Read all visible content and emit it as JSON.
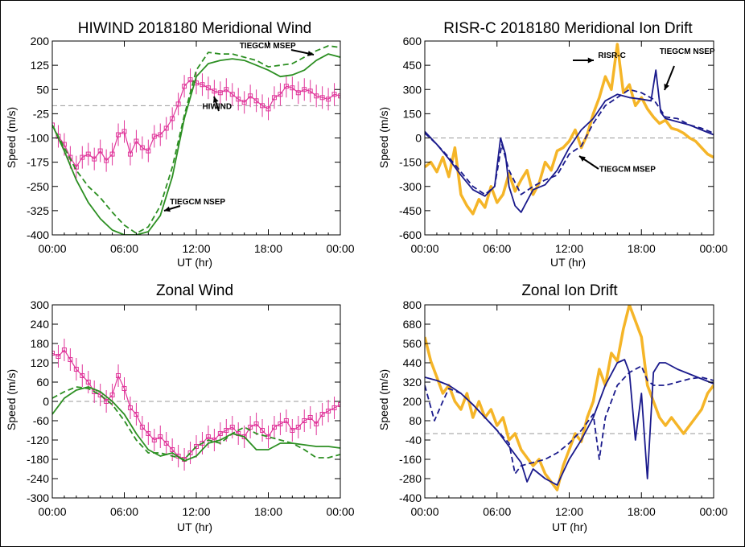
{
  "colors": {
    "hiwind": "#e0359a",
    "tiegcm_model": "#2c8f22",
    "risr": "#f5b528",
    "tiegcm_risr": "#1a1a8c",
    "zero_line": "#999999"
  },
  "chart_data": [
    {
      "type": "line",
      "title": "HIWIND  2018180 Meridional Wind",
      "xlabel": "UT (hr)",
      "ylabel": "Speed (m/s)",
      "xlim": [
        0,
        24
      ],
      "ylim": [
        -400,
        200
      ],
      "xticks": [
        0,
        6,
        12,
        18,
        24
      ],
      "xtick_labels": [
        "00:00",
        "06:00",
        "12:00",
        "18:00",
        "00:00"
      ],
      "yticks": [
        -400,
        -325,
        -250,
        -175,
        -100,
        -25,
        50,
        125,
        200
      ],
      "zero_line": true,
      "annotations": [
        {
          "text": "TIEGCM MSEP",
          "x": 15.6,
          "y": 178
        },
        {
          "text": "HIWIND",
          "x": 12.5,
          "y": -10
        },
        {
          "text": "TIEGCM NSEP",
          "x": 9.8,
          "y": -305
        }
      ],
      "series": [
        {
          "name": "HIWIND",
          "style": "markers-errorbars",
          "color_key": "hiwind",
          "x": [
            0.0,
            0.5,
            1.0,
            1.5,
            2.0,
            2.5,
            3.0,
            3.5,
            4.0,
            4.5,
            5.0,
            5.5,
            6.0,
            6.5,
            7.0,
            7.5,
            8.0,
            8.5,
            9.0,
            9.5,
            10.0,
            10.5,
            11.0,
            11.5,
            12.0,
            12.5,
            13.0,
            13.5,
            14.0,
            14.5,
            15.0,
            15.5,
            16.0,
            16.5,
            17.0,
            17.5,
            18.0,
            18.5,
            19.0,
            19.5,
            20.0,
            20.5,
            21.0,
            21.5,
            22.0,
            22.5,
            23.0,
            23.5,
            24.0
          ],
          "y": [
            -60,
            -95,
            -120,
            -160,
            -190,
            -160,
            -150,
            -165,
            -140,
            -170,
            -150,
            -90,
            -80,
            -150,
            -110,
            -130,
            -140,
            -95,
            -90,
            -70,
            -40,
            5,
            60,
            80,
            70,
            65,
            55,
            45,
            40,
            50,
            35,
            20,
            10,
            30,
            15,
            0,
            -10,
            25,
            35,
            60,
            55,
            40,
            50,
            45,
            30,
            25,
            20,
            35,
            30
          ]
        },
        {
          "name": "TIEGCM NSEP",
          "style": "solid",
          "color_key": "tiegcm_model",
          "x": [
            0,
            1,
            2,
            3,
            4,
            5,
            6,
            7,
            8,
            9,
            10,
            11,
            12,
            13,
            14,
            15,
            16,
            17,
            18,
            19,
            20,
            21,
            22,
            23,
            24
          ],
          "y": [
            -60,
            -140,
            -230,
            -300,
            -350,
            -385,
            -400,
            -400,
            -390,
            -340,
            -220,
            -40,
            90,
            130,
            140,
            145,
            140,
            125,
            110,
            90,
            95,
            110,
            140,
            160,
            150
          ]
        },
        {
          "name": "TIEGCM MSEP",
          "style": "dashed",
          "color_key": "tiegcm_model",
          "x": [
            0,
            1,
            2,
            3,
            4,
            5,
            6,
            7,
            8,
            9,
            10,
            11,
            12,
            13,
            14,
            15,
            16,
            17,
            18,
            19,
            20,
            21,
            22,
            23,
            24
          ],
          "y": [
            -60,
            -130,
            -200,
            -250,
            -285,
            -330,
            -370,
            -395,
            -375,
            -310,
            -190,
            -30,
            110,
            165,
            160,
            160,
            150,
            140,
            120,
            125,
            130,
            150,
            170,
            185,
            180
          ]
        }
      ]
    },
    {
      "type": "line",
      "title": "RISR-C  2018180 Meridional Ion Drift",
      "xlabel": "UT (hr)",
      "ylabel": "Speed (m/s)",
      "xlim": [
        0,
        24
      ],
      "ylim": [
        -600,
        600
      ],
      "xticks": [
        0,
        6,
        12,
        18,
        24
      ],
      "xtick_labels": [
        "00:00",
        "06:00",
        "12:00",
        "18:00",
        "00:00"
      ],
      "yticks": [
        -600,
        -450,
        -300,
        -150,
        0,
        150,
        300,
        450,
        600
      ],
      "zero_line": true,
      "annotations": [
        {
          "text": "RISR-C",
          "x": 14.4,
          "y": 495
        },
        {
          "text": "TIEGCM NSEP",
          "x": 19.5,
          "y": 520
        },
        {
          "text": "TIEGCM MSEP",
          "x": 14.5,
          "y": -210
        }
      ],
      "series": [
        {
          "name": "RISR-C",
          "style": "solid-thick",
          "color_key": "risr",
          "x": [
            0.0,
            0.5,
            1.0,
            1.5,
            2.0,
            2.5,
            3.0,
            3.5,
            4.0,
            4.5,
            5.0,
            5.5,
            6.0,
            6.5,
            7.0,
            7.5,
            8.0,
            8.5,
            9.0,
            9.5,
            10.0,
            10.5,
            11.0,
            11.5,
            12.0,
            12.5,
            13.0,
            13.5,
            14.0,
            14.5,
            15.0,
            15.5,
            16.0,
            16.5,
            17.0,
            17.5,
            18.0,
            18.5,
            19.0,
            19.5,
            20.0,
            20.5,
            21.0,
            21.5,
            22.0,
            22.5,
            23.0,
            23.5,
            24.0
          ],
          "y": [
            -180,
            -150,
            -210,
            -120,
            -240,
            -60,
            -350,
            -420,
            -470,
            -380,
            -430,
            -300,
            -400,
            -350,
            -220,
            -330,
            -260,
            -200,
            -350,
            -280,
            -150,
            -200,
            -80,
            -60,
            -20,
            50,
            -60,
            20,
            150,
            250,
            380,
            300,
            580,
            280,
            330,
            200,
            250,
            180,
            130,
            90,
            110,
            60,
            50,
            30,
            0,
            -20,
            -60,
            -100,
            -120
          ]
        },
        {
          "name": "TIEGCM NSEP",
          "style": "solid",
          "color_key": "tiegcm_risr",
          "x": [
            0.0,
            1.0,
            2.0,
            3.0,
            4.0,
            5.0,
            5.8,
            6.3,
            6.7,
            7.0,
            7.5,
            8.0,
            9.0,
            10.0,
            11.0,
            12.0,
            13.0,
            14.0,
            15.0,
            16.0,
            17.0,
            18.0,
            18.8,
            19.2,
            19.6,
            20.0,
            21.0,
            22.0,
            23.0,
            24.0
          ],
          "y": [
            40,
            -40,
            -130,
            -230,
            -320,
            -360,
            -300,
            0,
            -100,
            -300,
            -420,
            -460,
            -320,
            -290,
            -200,
            -60,
            50,
            120,
            230,
            270,
            250,
            240,
            230,
            420,
            160,
            120,
            100,
            80,
            50,
            20
          ]
        },
        {
          "name": "TIEGCM MSEP",
          "style": "dashed",
          "color_key": "tiegcm_risr",
          "x": [
            0,
            1,
            2,
            3,
            4,
            5,
            5.8,
            6.4,
            7,
            8,
            9,
            10,
            11,
            12,
            13,
            14,
            15,
            16,
            17,
            18,
            19,
            20,
            21,
            22,
            23,
            24
          ],
          "y": [
            30,
            -40,
            -120,
            -210,
            -300,
            -350,
            -300,
            -40,
            -200,
            -350,
            -300,
            -260,
            -230,
            -100,
            -50,
            90,
            200,
            250,
            300,
            280,
            240,
            130,
            120,
            80,
            60,
            30
          ]
        }
      ]
    },
    {
      "type": "line",
      "title": "Zonal Wind",
      "xlabel": "UT (hr)",
      "ylabel": "Speed (m/s)",
      "xlim": [
        0,
        24
      ],
      "ylim": [
        -300,
        300
      ],
      "xticks": [
        0,
        6,
        12,
        18,
        24
      ],
      "xtick_labels": [
        "00:00",
        "06:00",
        "12:00",
        "18:00",
        "00:00"
      ],
      "yticks": [
        -300,
        -240,
        -180,
        -120,
        -60,
        0,
        60,
        120,
        180,
        240,
        300
      ],
      "zero_line": true,
      "annotations": [],
      "series": [
        {
          "name": "HIWIND",
          "style": "markers-errorbars",
          "color_key": "hiwind",
          "x": [
            0.0,
            0.5,
            1.0,
            1.5,
            2.0,
            2.5,
            3.0,
            3.5,
            4.0,
            4.5,
            5.0,
            5.5,
            6.0,
            6.5,
            7.0,
            7.5,
            8.0,
            8.5,
            9.0,
            9.5,
            10.0,
            10.5,
            11.0,
            11.5,
            12.0,
            12.5,
            13.0,
            13.5,
            14.0,
            14.5,
            15.0,
            15.5,
            16.0,
            16.5,
            17.0,
            17.5,
            18.0,
            18.5,
            19.0,
            19.5,
            20.0,
            20.5,
            21.0,
            21.5,
            22.0,
            22.5,
            23.0,
            23.5,
            24.0
          ],
          "y": [
            150,
            140,
            160,
            130,
            100,
            80,
            60,
            30,
            20,
            0,
            20,
            80,
            40,
            -20,
            -40,
            -80,
            -100,
            -120,
            -110,
            -130,
            -150,
            -170,
            -180,
            -160,
            -140,
            -130,
            -110,
            -120,
            -100,
            -90,
            -80,
            -100,
            -110,
            -80,
            -70,
            -90,
            -110,
            -80,
            -70,
            -60,
            -90,
            -80,
            -60,
            -50,
            -70,
            -40,
            -30,
            -20,
            -10
          ]
        },
        {
          "name": "TIEGCM NSEP",
          "style": "solid",
          "color_key": "tiegcm_model",
          "x": [
            0,
            1,
            2,
            3,
            4,
            5,
            6,
            7,
            8,
            9,
            10,
            11,
            12,
            13,
            14,
            15,
            16,
            17,
            18,
            19,
            20,
            21,
            22,
            23,
            24
          ],
          "y": [
            -40,
            10,
            35,
            45,
            30,
            0,
            -40,
            -100,
            -150,
            -170,
            -160,
            -185,
            -170,
            -130,
            -120,
            -100,
            -110,
            -150,
            -150,
            -130,
            -130,
            -135,
            -140,
            -140,
            -145
          ]
        },
        {
          "name": "TIEGCM MSEP",
          "style": "dashed",
          "color_key": "tiegcm_model",
          "x": [
            0,
            1,
            2,
            3,
            4,
            5,
            6,
            7,
            8,
            9,
            10,
            11,
            12,
            13,
            14,
            15,
            16,
            17,
            18,
            19,
            20,
            21,
            22,
            23,
            24
          ],
          "y": [
            10,
            30,
            45,
            40,
            20,
            -10,
            -60,
            -120,
            -160,
            -160,
            -170,
            -180,
            -140,
            -120,
            -130,
            -100,
            -80,
            -100,
            -110,
            -120,
            -130,
            -150,
            -175,
            -175,
            -165
          ]
        }
      ]
    },
    {
      "type": "line",
      "title": "Zonal Ion Drift",
      "xlabel": "UT (hr)",
      "ylabel": "Speed (m/s)",
      "xlim": [
        0,
        24
      ],
      "ylim": [
        -400,
        800
      ],
      "xticks": [
        0,
        6,
        12,
        18,
        24
      ],
      "xtick_labels": [
        "00:00",
        "06:00",
        "12:00",
        "18:00",
        "00:00"
      ],
      "yticks": [
        -400,
        -280,
        -160,
        -40,
        80,
        200,
        320,
        440,
        560,
        680,
        800
      ],
      "zero_line_value": 0,
      "annotations": [],
      "series": [
        {
          "name": "RISR-C",
          "style": "solid-thick",
          "color_key": "risr",
          "x": [
            0.0,
            0.5,
            1.0,
            1.5,
            2.0,
            2.5,
            3.0,
            3.5,
            4.0,
            4.5,
            5.0,
            5.5,
            6.0,
            6.5,
            7.0,
            7.5,
            8.0,
            8.5,
            9.0,
            9.5,
            10.0,
            10.5,
            11.0,
            11.5,
            12.0,
            12.5,
            13.0,
            13.5,
            14.0,
            14.5,
            15.0,
            15.5,
            16.0,
            16.5,
            17.0,
            17.5,
            18.0,
            18.5,
            19.0,
            19.5,
            20.0,
            20.5,
            21.0,
            21.5,
            22.0,
            22.5,
            23.0,
            23.5,
            24.0
          ],
          "y": [
            600,
            450,
            350,
            250,
            300,
            200,
            150,
            250,
            100,
            200,
            100,
            150,
            50,
            100,
            -40,
            0,
            -100,
            -150,
            -200,
            -160,
            -250,
            -300,
            -350,
            -200,
            -100,
            0,
            -50,
            100,
            200,
            400,
            300,
            500,
            450,
            650,
            800,
            700,
            600,
            300,
            200,
            100,
            50,
            100,
            50,
            0,
            50,
            100,
            150,
            250,
            300
          ]
        },
        {
          "name": "TIEGCM NSEP",
          "style": "solid",
          "color_key": "tiegcm_risr",
          "x": [
            0.0,
            1.0,
            2.0,
            3.0,
            4.0,
            5.0,
            6.0,
            7.0,
            8.0,
            8.5,
            9.0,
            10.0,
            11.0,
            12.0,
            13.0,
            14.0,
            15.0,
            16.0,
            16.6,
            17.0,
            17.5,
            18.0,
            18.5,
            19.0,
            19.5,
            20.0,
            21.0,
            22.0,
            23.0,
            24.0
          ],
          "y": [
            350,
            330,
            300,
            250,
            180,
            100,
            20,
            -80,
            -180,
            -300,
            -220,
            -280,
            -320,
            -160,
            -40,
            100,
            300,
            440,
            460,
            380,
            -40,
            250,
            -280,
            380,
            440,
            440,
            400,
            370,
            340,
            310
          ]
        },
        {
          "name": "TIEGCM MSEP",
          "style": "dashed",
          "color_key": "tiegcm_risr",
          "x": [
            0.0,
            0.8,
            1.5,
            2.0,
            3.0,
            4.0,
            5.0,
            6.0,
            7.0,
            7.5,
            8.0,
            9.0,
            10.0,
            11.0,
            12.0,
            13.0,
            14.0,
            14.5,
            15.0,
            16.0,
            17.0,
            18.0,
            18.5,
            19.0,
            20.0,
            21.0,
            22.0,
            23.0,
            24.0
          ],
          "y": [
            300,
            80,
            200,
            280,
            250,
            180,
            100,
            20,
            -60,
            -250,
            -200,
            -180,
            -160,
            -120,
            -60,
            20,
            120,
            -160,
            100,
            300,
            380,
            420,
            330,
            300,
            300,
            320,
            340,
            350,
            330
          ]
        }
      ]
    }
  ]
}
